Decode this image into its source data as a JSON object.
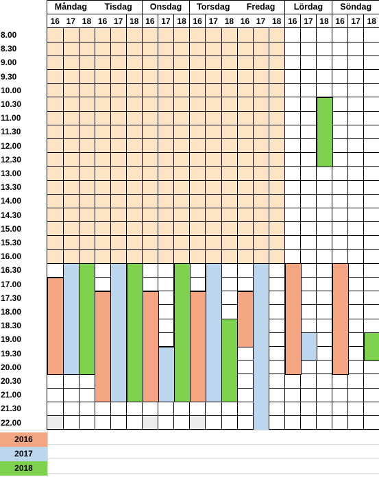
{
  "colors": {
    "highlight": "#fce4c4",
    "y2016": "#f4a582",
    "y2017": "#bcd6ee",
    "y2018": "#7ed24e",
    "empty_gray": "#ececec"
  },
  "days": [
    "Måndag",
    "Tisdag",
    "Onsdag",
    "Torsdag",
    "Fredag",
    "Lördag",
    "Söndag"
  ],
  "years": [
    "16",
    "17",
    "18"
  ],
  "times": [
    "8.00",
    "8.30",
    "9.00",
    "9.30",
    "10.00",
    "10.30",
    "11.00",
    "11.30",
    "12.00",
    "12.30",
    "13.00",
    "13.30",
    "14.00",
    "14.30",
    "15.00",
    "15.30",
    "16.00",
    "16.30",
    "17.00",
    "17.30",
    "18.00",
    "18.30",
    "19.00",
    "19.30",
    "20.00",
    "20.30",
    "21.00",
    "21.30",
    "22.00"
  ],
  "highlight_area": {
    "from_day": 0,
    "to_day": 4,
    "from_time": "8.00",
    "to_time": "16.00"
  },
  "bars": [
    {
      "day": 0,
      "year": "16",
      "from": "17.00",
      "to": "20.00"
    },
    {
      "day": 0,
      "year": "17",
      "from": "16.30",
      "to": "20.00"
    },
    {
      "day": 0,
      "year": "18",
      "from": "16.30",
      "to": "20.00"
    },
    {
      "day": 1,
      "year": "16",
      "from": "17.30",
      "to": "21.00"
    },
    {
      "day": 1,
      "year": "17",
      "from": "16.30",
      "to": "21.00"
    },
    {
      "day": 1,
      "year": "18",
      "from": "16.30",
      "to": "21.00"
    },
    {
      "day": 2,
      "year": "16",
      "from": "17.30",
      "to": "21.00"
    },
    {
      "day": 2,
      "year": "17",
      "from": "19.30",
      "to": "21.00"
    },
    {
      "day": 2,
      "year": "18",
      "from": "16.30",
      "to": "21.00"
    },
    {
      "day": 3,
      "year": "16",
      "from": "17.30",
      "to": "21.00"
    },
    {
      "day": 3,
      "year": "17",
      "from": "16.30",
      "to": "21.00"
    },
    {
      "day": 3,
      "year": "18",
      "from": "18.30",
      "to": "21.00"
    },
    {
      "day": 4,
      "year": "16",
      "from": "17.30",
      "to": "19.00"
    },
    {
      "day": 4,
      "year": "17",
      "from": "16.30",
      "to": "22.00"
    },
    {
      "day": 5,
      "year": "16",
      "from": "16.30",
      "to": "20.00"
    },
    {
      "day": 5,
      "year": "17",
      "from": "19.00",
      "to": "19.30"
    },
    {
      "day": 5,
      "year": "18",
      "from": "10.30",
      "to": "12.30"
    },
    {
      "day": 6,
      "year": "16",
      "from": "16.30",
      "to": "20.00"
    },
    {
      "day": 6,
      "year": "18",
      "from": "19.00",
      "to": "19.30"
    }
  ],
  "gray_cells": [
    {
      "day": 0,
      "year": "16",
      "time": "22.00"
    },
    {
      "day": 2,
      "year": "16",
      "time": "22.00"
    },
    {
      "day": 3,
      "year": "16",
      "time": "22.00"
    }
  ],
  "legend": [
    {
      "label": "2016",
      "color_key": "y2016"
    },
    {
      "label": "2017",
      "color_key": "y2017"
    },
    {
      "label": "2018",
      "color_key": "y2018"
    }
  ]
}
